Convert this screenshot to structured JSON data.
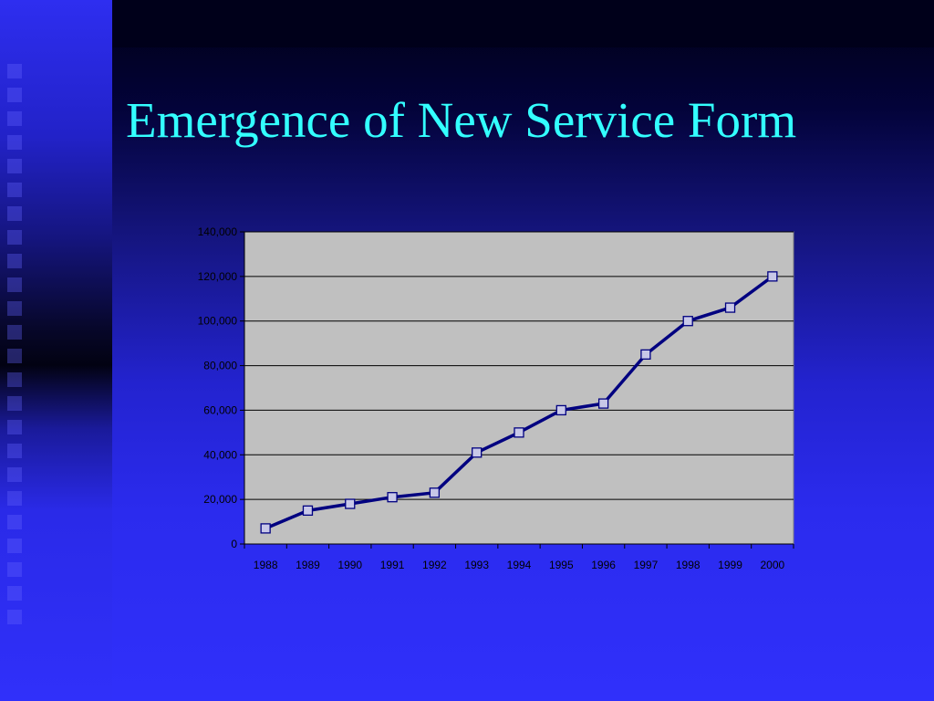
{
  "slide": {
    "title": "Emergence of New Service Form"
  },
  "colors": {
    "title": "#33ffff",
    "plot_area": "#c0c0c0",
    "line": "#000080",
    "marker_fill": "#c8c8e8",
    "axis_text": "#000000"
  },
  "chart_data": {
    "type": "line",
    "title": "",
    "xlabel": "",
    "ylabel": "",
    "categories": [
      "1988",
      "1989",
      "1990",
      "1991",
      "1992",
      "1993",
      "1994",
      "1995",
      "1996",
      "1997",
      "1998",
      "1999",
      "2000"
    ],
    "series": [
      {
        "values": [
          7000,
          15000,
          18000,
          21000,
          23000,
          41000,
          50000,
          60000,
          63000,
          85000,
          100000,
          106000,
          120000
        ]
      }
    ],
    "ylim": [
      0,
      140000
    ],
    "yticks": [
      0,
      20000,
      40000,
      60000,
      80000,
      100000,
      120000,
      140000
    ],
    "ytick_labels": [
      "0",
      "20,000",
      "40,000",
      "60,000",
      "80,000",
      "100,000",
      "120,000",
      "140,000"
    ],
    "grid": true,
    "legend": "none",
    "marker": "square"
  }
}
